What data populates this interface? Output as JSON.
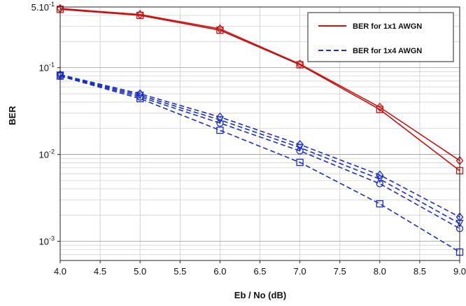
{
  "chart_data": {
    "type": "line",
    "title": "",
    "xlabel": "Eb / No (dB)",
    "ylabel": "BER",
    "x": [
      4.0,
      5.0,
      6.0,
      7.0,
      8.0,
      9.0
    ],
    "xlim": [
      4.0,
      9.0
    ],
    "ylim": [
      0.0006,
      0.5
    ],
    "yscale": "log",
    "grid": true,
    "legend_position": "top-right",
    "x_ticks": [
      "4.0",
      "4.5",
      "5.0",
      "5.5",
      "6.0",
      "6.5",
      "7.0",
      "7.5",
      "8.0",
      "8.5",
      "9.0"
    ],
    "y_ticks": [
      {
        "base": "5.10",
        "exp": "-1",
        "value": 0.5
      },
      {
        "base": "10",
        "exp": "-1",
        "value": 0.1
      },
      {
        "base": "10",
        "exp": "-2",
        "value": 0.01
      },
      {
        "base": "10",
        "exp": "-3",
        "value": 0.001
      }
    ],
    "legend": [
      {
        "label": "BER for 1x1 AWGN",
        "color": "#cc1111",
        "dash": "solid"
      },
      {
        "label": "BER for 1x4 AWGN",
        "color": "#1a2ecc",
        "dash": "dashed"
      }
    ],
    "series": [
      {
        "group": "1x1",
        "color": "#cc1111",
        "dash": "solid",
        "marker": "square",
        "values": [
          0.47,
          0.4,
          0.27,
          0.108,
          0.033,
          0.0065
        ]
      },
      {
        "group": "1x1",
        "color": "#cc1111",
        "dash": "solid",
        "marker": "diamond",
        "values": [
          0.48,
          0.41,
          0.28,
          0.11,
          0.035,
          0.0085
        ]
      },
      {
        "group": "1x4",
        "color": "#1a2ecc",
        "dash": "dashed",
        "marker": "square",
        "values": [
          0.08,
          0.044,
          0.019,
          0.0081,
          0.0027,
          0.00075
        ]
      },
      {
        "group": "1x4",
        "color": "#1a2ecc",
        "dash": "dashed",
        "marker": "circle",
        "values": [
          0.081,
          0.046,
          0.023,
          0.011,
          0.0046,
          0.0014
        ]
      },
      {
        "group": "1x4",
        "color": "#1a2ecc",
        "dash": "dashed",
        "marker": "triangle",
        "values": [
          0.082,
          0.048,
          0.025,
          0.012,
          0.0052,
          0.0016
        ]
      },
      {
        "group": "1x4",
        "color": "#1a2ecc",
        "dash": "dashed",
        "marker": "diamond",
        "values": [
          0.083,
          0.05,
          0.027,
          0.013,
          0.0058,
          0.0019
        ]
      }
    ]
  }
}
